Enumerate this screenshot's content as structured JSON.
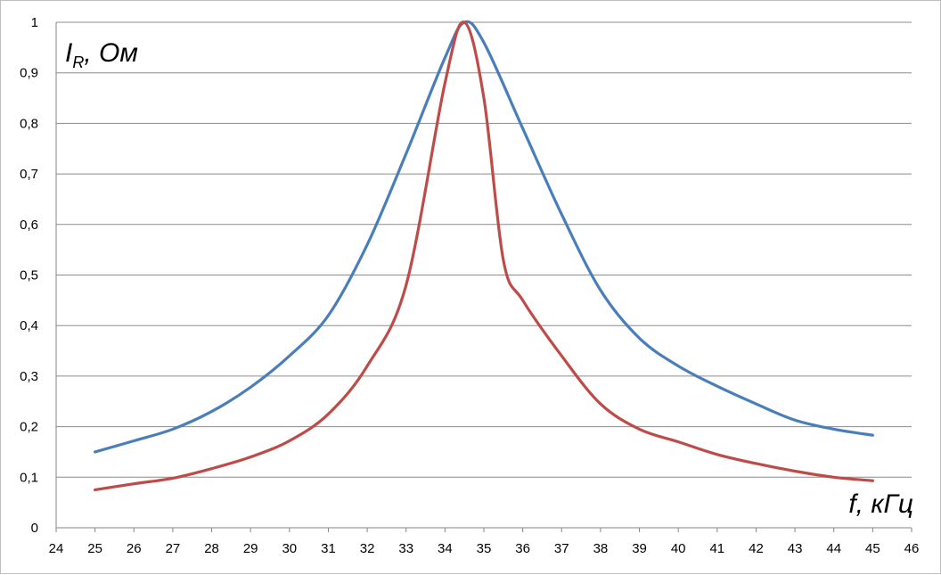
{
  "chart_data": {
    "type": "line",
    "title": "",
    "ylabel": {
      "main": "I",
      "sub": "R",
      "rest": ", Ом"
    },
    "xlabel": "f, кГц",
    "xlim": [
      24,
      46
    ],
    "ylim": [
      0,
      1
    ],
    "x_ticks": [
      "24",
      "25",
      "26",
      "27",
      "28",
      "29",
      "30",
      "31",
      "32",
      "33",
      "34",
      "35",
      "36",
      "37",
      "38",
      "39",
      "40",
      "41",
      "42",
      "43",
      "44",
      "45",
      "46"
    ],
    "y_ticks": [
      "0",
      "0,1",
      "0,2",
      "0,3",
      "0,4",
      "0,5",
      "0,6",
      "0,7",
      "0,8",
      "0,9",
      "1"
    ],
    "grid": "horizontal",
    "series": [
      {
        "color": "#4a7ebb",
        "points": [
          [
            25,
            0.15
          ],
          [
            26,
            0.172
          ],
          [
            27,
            0.195
          ],
          [
            28,
            0.23
          ],
          [
            29,
            0.278
          ],
          [
            30,
            0.34
          ],
          [
            31,
            0.42
          ],
          [
            32,
            0.56
          ],
          [
            33,
            0.74
          ],
          [
            34,
            0.93
          ],
          [
            34.5,
            1.0
          ],
          [
            35,
            0.96
          ],
          [
            36,
            0.79
          ],
          [
            37,
            0.62
          ],
          [
            38,
            0.47
          ],
          [
            39,
            0.375
          ],
          [
            40,
            0.32
          ],
          [
            41,
            0.28
          ],
          [
            42,
            0.245
          ],
          [
            43,
            0.213
          ],
          [
            44,
            0.195
          ],
          [
            45,
            0.183
          ]
        ]
      },
      {
        "color": "#be4b48",
        "points": [
          [
            25,
            0.075
          ],
          [
            26,
            0.087
          ],
          [
            27,
            0.098
          ],
          [
            28,
            0.117
          ],
          [
            29,
            0.14
          ],
          [
            30,
            0.172
          ],
          [
            31,
            0.225
          ],
          [
            32,
            0.32
          ],
          [
            33,
            0.48
          ],
          [
            34,
            0.88
          ],
          [
            34.5,
            1.0
          ],
          [
            35,
            0.85
          ],
          [
            35.5,
            0.53
          ],
          [
            36,
            0.45
          ],
          [
            37,
            0.34
          ],
          [
            38,
            0.245
          ],
          [
            39,
            0.195
          ],
          [
            40,
            0.17
          ],
          [
            41,
            0.145
          ],
          [
            42,
            0.127
          ],
          [
            43,
            0.112
          ],
          [
            44,
            0.1
          ],
          [
            45,
            0.093
          ]
        ]
      }
    ]
  }
}
